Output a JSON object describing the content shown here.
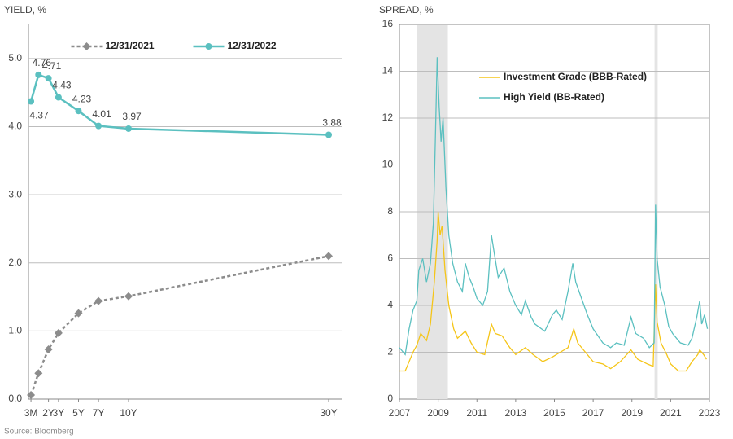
{
  "chart_data": [
    {
      "type": "line",
      "y_label": "YIELD, %",
      "x": [
        0.25,
        1,
        2,
        3,
        5,
        7,
        10,
        30
      ],
      "xlim": [
        0,
        31.3
      ],
      "xticks": [
        {
          "value": 0.25,
          "label": "3M"
        },
        {
          "value": 2,
          "label": "2Y"
        },
        {
          "value": 3,
          "label": "3Y"
        },
        {
          "value": 5,
          "label": "5Y"
        },
        {
          "value": 7,
          "label": "7Y"
        },
        {
          "value": 10,
          "label": "10Y"
        },
        {
          "value": 30,
          "label": "30Y"
        }
      ],
      "ylim": [
        0,
        5.5
      ],
      "yticks": [
        {
          "value": 0,
          "label": "0.0"
        },
        {
          "value": 1,
          "label": "1.0"
        },
        {
          "value": 2,
          "label": "2.0"
        },
        {
          "value": 3,
          "label": "3.0"
        },
        {
          "value": 4,
          "label": "4.0"
        },
        {
          "value": 5,
          "label": "5.0"
        }
      ],
      "grid": true,
      "legend": "upper center",
      "series": [
        {
          "name": "12/31/2021",
          "color": "#8c8c8c",
          "dashed": true,
          "marker": "diamond",
          "values": [
            0.06,
            0.38,
            0.73,
            0.97,
            1.26,
            1.44,
            1.51,
            2.1
          ]
        },
        {
          "name": "12/31/2022",
          "color": "#5bc0c0",
          "dashed": false,
          "marker": "circle",
          "show_values": true,
          "values": [
            4.37,
            4.76,
            4.71,
            4.43,
            4.23,
            4.01,
            3.97,
            3.88
          ]
        }
      ]
    },
    {
      "type": "line",
      "y_label": "SPREAD, %",
      "xlim": [
        2007,
        2023
      ],
      "xticks": [
        2007,
        2009,
        2011,
        2013,
        2015,
        2017,
        2019,
        2021,
        2023
      ],
      "ylim": [
        0,
        16
      ],
      "yticks": [
        0,
        2,
        4,
        6,
        8,
        10,
        12,
        14,
        16
      ],
      "grid": true,
      "legend": "upper center",
      "shaded_regions": [
        [
          2007.92,
          2009.5
        ],
        [
          2020.17,
          2020.33
        ]
      ],
      "series": [
        {
          "name": "Investment Grade (BBB-Rated)",
          "color": "#f5c518",
          "x": [
            2007.0,
            2007.3,
            2007.5,
            2007.7,
            2007.9,
            2008.1,
            2008.4,
            2008.6,
            2008.8,
            2008.95,
            2009.0,
            2009.1,
            2009.2,
            2009.35,
            2009.55,
            2009.8,
            2010.0,
            2010.4,
            2010.7,
            2011.0,
            2011.4,
            2011.75,
            2011.95,
            2012.3,
            2012.7,
            2013.0,
            2013.5,
            2013.9,
            2014.4,
            2014.9,
            2015.3,
            2015.7,
            2016.0,
            2016.2,
            2016.6,
            2017.0,
            2017.5,
            2017.9,
            2018.4,
            2018.95,
            2019.3,
            2019.8,
            2020.1,
            2020.22,
            2020.3,
            2020.5,
            2020.8,
            2021.0,
            2021.4,
            2021.8,
            2022.1,
            2022.4,
            2022.5,
            2022.7,
            2022.85
          ],
          "values": [
            1.2,
            1.2,
            1.6,
            2.0,
            2.3,
            2.8,
            2.5,
            3.2,
            5.0,
            6.8,
            8.0,
            7.0,
            7.4,
            5.5,
            4.0,
            3.0,
            2.6,
            2.9,
            2.4,
            2.0,
            1.9,
            3.2,
            2.8,
            2.7,
            2.2,
            1.9,
            2.2,
            1.9,
            1.6,
            1.8,
            2.0,
            2.2,
            3.0,
            2.4,
            2.0,
            1.6,
            1.5,
            1.3,
            1.6,
            2.1,
            1.7,
            1.5,
            1.4,
            4.9,
            3.3,
            2.4,
            1.9,
            1.5,
            1.2,
            1.2,
            1.6,
            1.9,
            2.1,
            1.9,
            1.7
          ]
        },
        {
          "name": "High Yield (BB-Rated)",
          "color": "#5bc0c0",
          "x": [
            2007.0,
            2007.3,
            2007.5,
            2007.7,
            2007.9,
            2008.0,
            2008.2,
            2008.4,
            2008.6,
            2008.75,
            2008.85,
            2008.95,
            2009.05,
            2009.15,
            2009.25,
            2009.4,
            2009.55,
            2009.75,
            2010.0,
            2010.25,
            2010.4,
            2010.6,
            2010.8,
            2011.0,
            2011.3,
            2011.55,
            2011.75,
            2011.9,
            2012.1,
            2012.4,
            2012.7,
            2013.0,
            2013.3,
            2013.5,
            2013.8,
            2014.0,
            2014.5,
            2014.9,
            2015.1,
            2015.4,
            2015.7,
            2015.95,
            2016.1,
            2016.4,
            2016.7,
            2017.0,
            2017.5,
            2017.9,
            2018.2,
            2018.6,
            2018.95,
            2019.2,
            2019.6,
            2019.9,
            2020.15,
            2020.22,
            2020.3,
            2020.45,
            2020.7,
            2020.9,
            2021.1,
            2021.5,
            2021.9,
            2022.1,
            2022.35,
            2022.5,
            2022.6,
            2022.75,
            2022.9
          ],
          "values": [
            2.2,
            1.9,
            3.0,
            3.8,
            4.2,
            5.5,
            6.0,
            5.0,
            5.8,
            7.5,
            11.0,
            14.6,
            12.5,
            11.0,
            12.0,
            9.0,
            7.0,
            5.8,
            5.0,
            4.6,
            5.8,
            5.2,
            4.8,
            4.3,
            4.0,
            4.6,
            7.0,
            6.2,
            5.2,
            5.6,
            4.6,
            4.0,
            3.6,
            4.2,
            3.5,
            3.2,
            2.9,
            3.6,
            3.8,
            3.4,
            4.6,
            5.8,
            5.0,
            4.3,
            3.6,
            3.0,
            2.4,
            2.2,
            2.4,
            2.3,
            3.5,
            2.8,
            2.6,
            2.2,
            2.4,
            8.3,
            6.0,
            4.8,
            4.0,
            3.1,
            2.8,
            2.4,
            2.3,
            2.6,
            3.5,
            4.2,
            3.2,
            3.6,
            3.0
          ]
        }
      ]
    }
  ],
  "source": "Source: Bloomberg"
}
